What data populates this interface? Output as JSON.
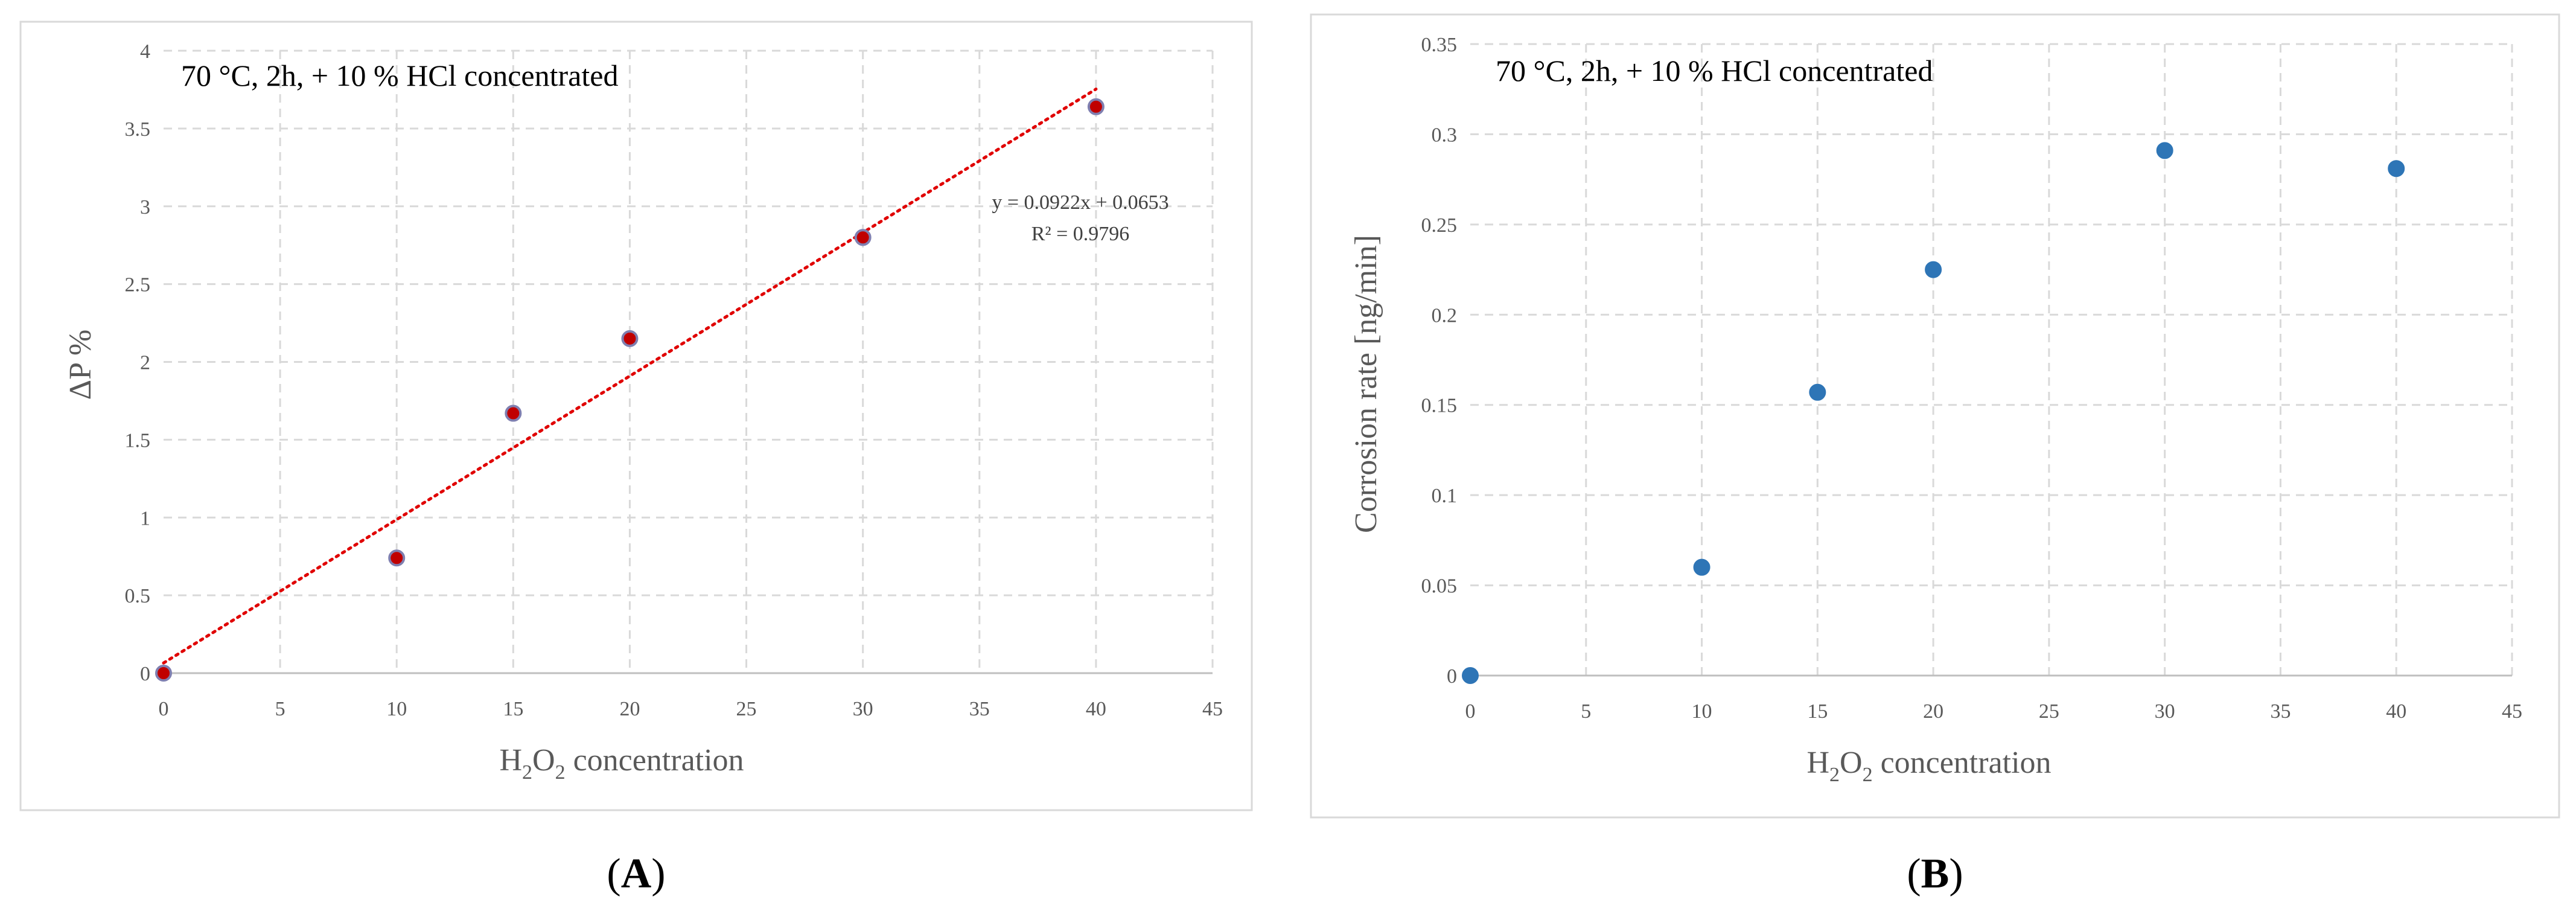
{
  "chart_data": [
    {
      "type": "scatter",
      "panel_label_pre": "(",
      "panel_label": "A",
      "panel_label_post": ")",
      "annotation": "70 °C, 2h, + 10 % HCl concentrated",
      "xlabel": {
        "pre": "H",
        "sub1": "2",
        "mid": "O",
        "sub2": "2",
        "post": " concentration"
      },
      "ylabel": "ΔP %",
      "xlim": [
        0,
        45
      ],
      "ylim": [
        0,
        4
      ],
      "xticks": [
        0,
        5,
        10,
        15,
        20,
        25,
        30,
        35,
        40,
        45
      ],
      "yticks": [
        0,
        0.5,
        1,
        1.5,
        2,
        2.5,
        3,
        3.5,
        4
      ],
      "grid": true,
      "series": [
        {
          "x": [
            0,
            10,
            15,
            20,
            30,
            40
          ],
          "y": [
            0,
            0.74,
            1.67,
            2.15,
            2.8,
            3.64
          ]
        }
      ],
      "trendline": {
        "slope": 0.0922,
        "intercept": 0.0653,
        "x_range": [
          0,
          40
        ],
        "equation": "y = 0.0922x + 0.0653",
        "r2": "R² = 0.9796"
      },
      "colors": {
        "marker_fill": "#c00000",
        "marker_edge": "#7f7fb0",
        "trend": "#e00000",
        "grid": "#d9d9d9"
      }
    },
    {
      "type": "scatter",
      "panel_label_pre": "(",
      "panel_label": "B",
      "panel_label_post": ")",
      "annotation": "70 °C, 2h, + 10 % HCl concentrated",
      "xlabel": {
        "pre": "H",
        "sub1": "2",
        "mid": "O",
        "sub2": "2",
        "post": " concentration"
      },
      "ylabel": "Corrosion rate [ng/min]",
      "xlim": [
        0,
        45
      ],
      "ylim": [
        0,
        0.35
      ],
      "xticks": [
        0,
        5,
        10,
        15,
        20,
        25,
        30,
        35,
        40,
        45
      ],
      "yticks": [
        0,
        0.05,
        0.1,
        0.15,
        0.2,
        0.25,
        0.3,
        0.35
      ],
      "grid": true,
      "series": [
        {
          "x": [
            0,
            10,
            15,
            20,
            30,
            40
          ],
          "y": [
            0,
            0.06,
            0.157,
            0.225,
            0.291,
            0.281
          ]
        }
      ],
      "colors": {
        "marker_fill": "#2e75b6",
        "marker_edge": "#2e75b6",
        "grid": "#d9d9d9"
      }
    }
  ]
}
